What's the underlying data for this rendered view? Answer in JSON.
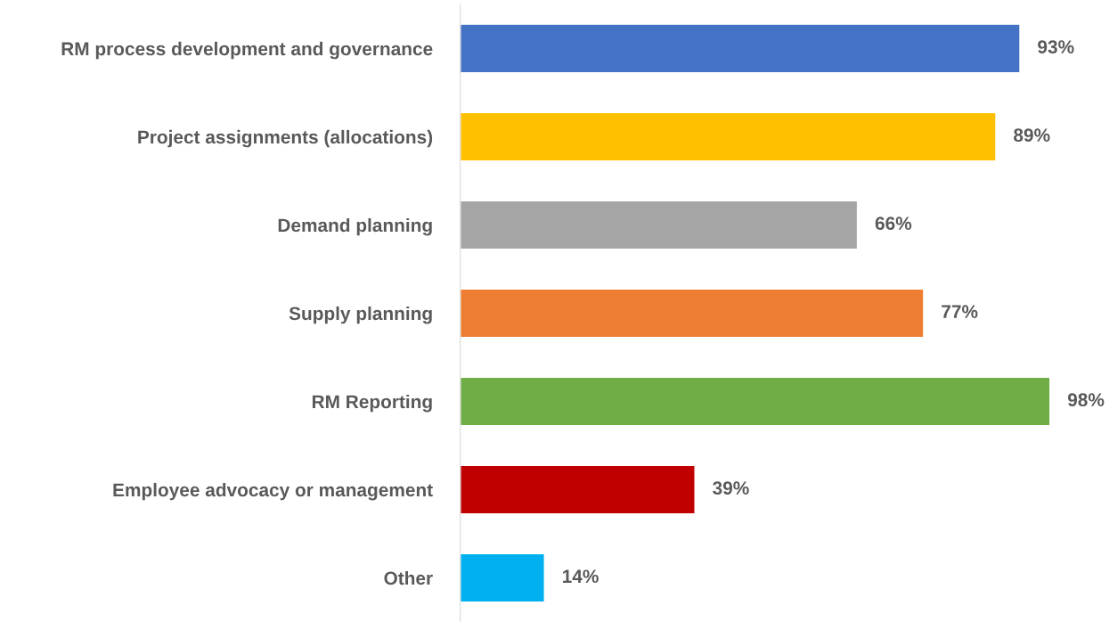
{
  "chart_data": {
    "type": "bar",
    "orientation": "horizontal",
    "categories": [
      "RM process development and governance",
      "Project assignments (allocations)",
      "Demand planning",
      "Supply planning",
      "RM Reporting",
      "Employee advocacy or management",
      "Other"
    ],
    "values": [
      93,
      89,
      66,
      77,
      98,
      39,
      14
    ],
    "colors": [
      "#4472c4",
      "#ffc000",
      "#a5a5a5",
      "#ed7d31",
      "#70ad47",
      "#c00000",
      "#00b0f0"
    ],
    "value_labels": [
      "93%",
      "89%",
      "66%",
      "77%",
      "98%",
      "39%",
      "14%"
    ],
    "grid": false,
    "legend": false
  }
}
